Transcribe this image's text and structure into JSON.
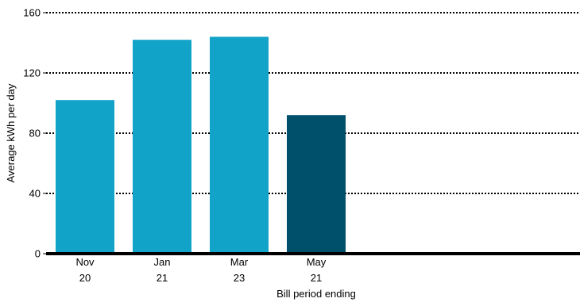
{
  "chart_data": {
    "type": "bar",
    "categories": [
      [
        "Nov",
        "20"
      ],
      [
        "Jan",
        "21"
      ],
      [
        "Mar",
        "23"
      ],
      [
        "May",
        "21"
      ]
    ],
    "values": [
      102,
      142,
      144,
      92
    ],
    "bar_colors": [
      "#12a3c9",
      "#12a3c9",
      "#12a3c9",
      "#00506b"
    ],
    "title": "",
    "xlabel": "Bill period ending",
    "ylabel": "Average kWh per day",
    "ylim": [
      0,
      160
    ],
    "yticks": [
      0,
      40,
      80,
      120,
      160
    ],
    "grid": true,
    "legend": "none"
  }
}
